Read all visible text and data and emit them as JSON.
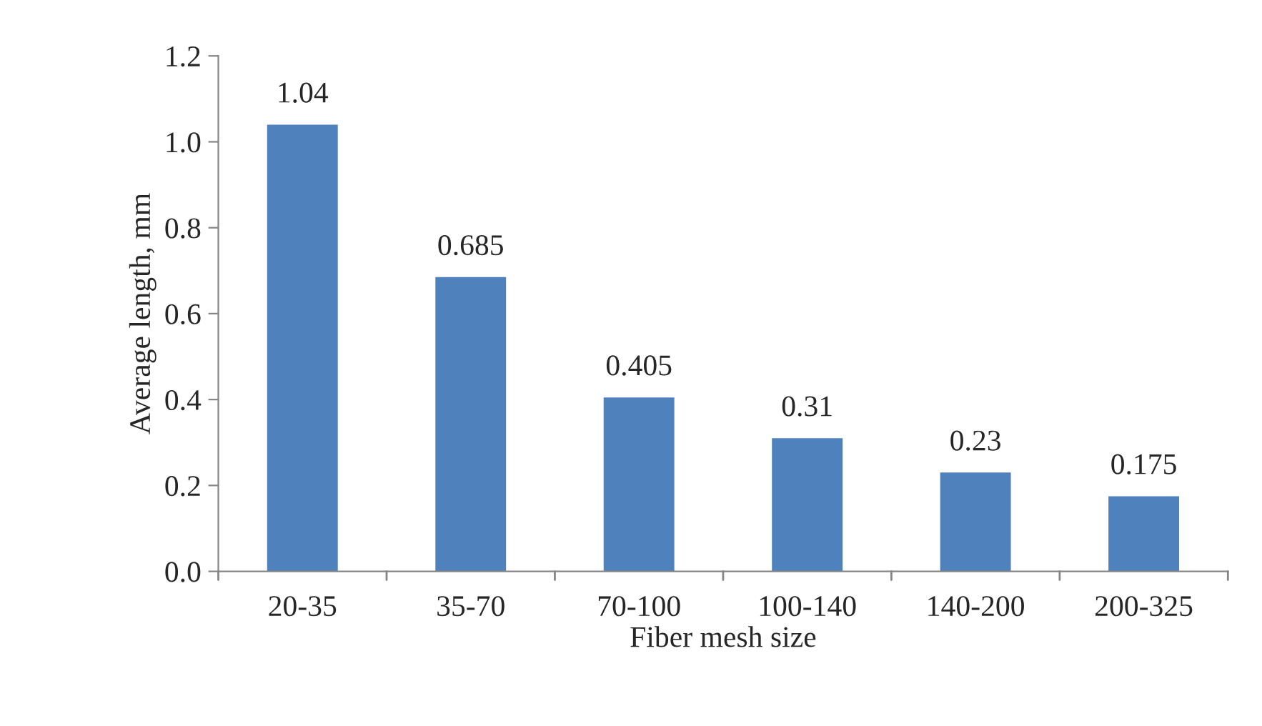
{
  "chart_data": {
    "type": "bar",
    "xlabel": "Fiber mesh size",
    "ylabel": "Average length, mm",
    "categories": [
      "20-35",
      "35-70",
      "70-100",
      "100-140",
      "140-200",
      "200-325"
    ],
    "values": [
      1.04,
      0.685,
      0.405,
      0.31,
      0.23,
      0.175
    ],
    "color": "#4f81bd",
    "ylim": [
      0,
      1.2
    ],
    "yticks": [
      {
        "value": 0,
        "label": "0.0"
      },
      {
        "value": 0.2,
        "label": "0.2"
      },
      {
        "value": 0.4,
        "label": "0.4"
      },
      {
        "value": 0.6,
        "label": "0.6"
      },
      {
        "value": 0.8,
        "label": "0.8"
      },
      {
        "value": 1.0,
        "label": "1.0"
      },
      {
        "value": 1.2,
        "label": "1.2"
      }
    ],
    "data_labels": true,
    "grid": false,
    "legend": false
  }
}
